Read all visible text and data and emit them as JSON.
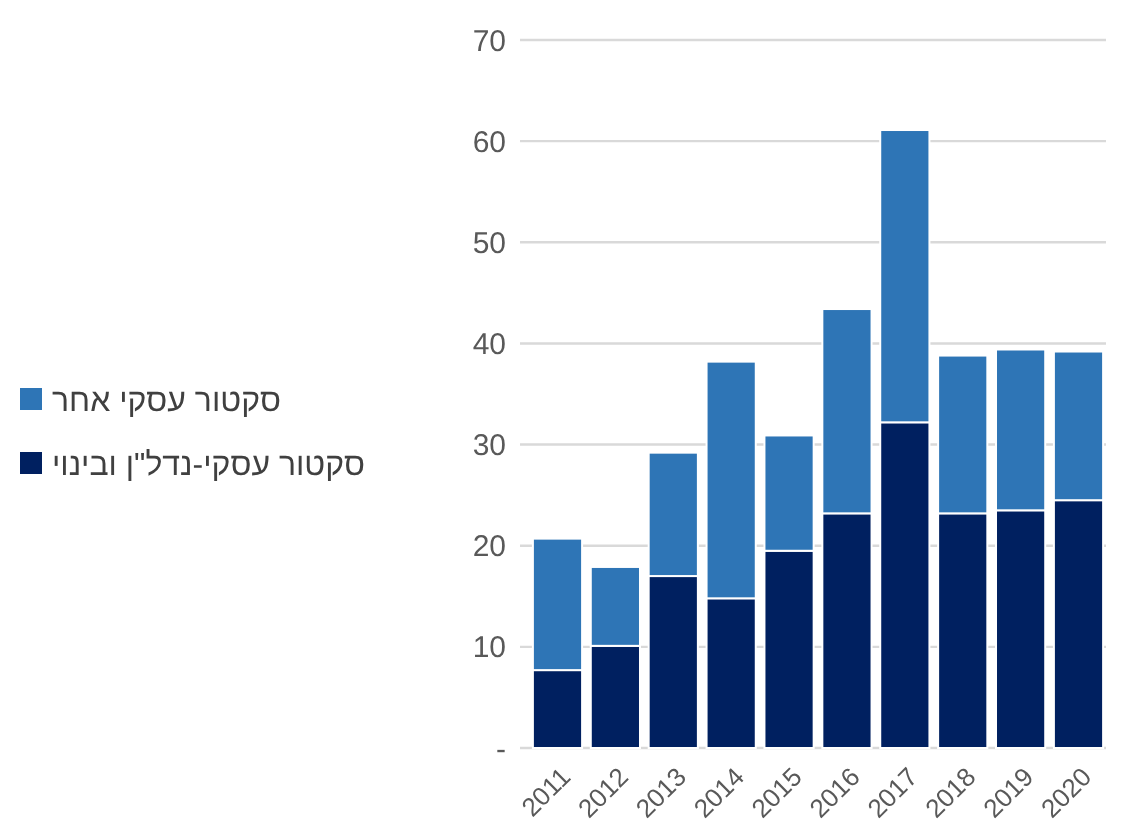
{
  "chart_data": {
    "type": "bar",
    "stacked": true,
    "categories": [
      "2011",
      "2012",
      "2013",
      "2014",
      "2015",
      "2016",
      "2017",
      "2018",
      "2019",
      "2020"
    ],
    "series": [
      {
        "name": "סקטור עסקי-נדל\"ן ובינוי",
        "color": "#002060",
        "values": [
          7.7,
          10.1,
          17.0,
          14.8,
          19.5,
          23.2,
          32.2,
          23.2,
          23.5,
          24.5
        ]
      },
      {
        "name": "סקטור עסקי אחר",
        "color": "#2e75b6",
        "values": [
          13.0,
          7.8,
          12.2,
          23.4,
          11.4,
          20.2,
          28.9,
          15.6,
          15.9,
          14.7
        ]
      }
    ],
    "ylim": [
      0,
      70
    ],
    "yticks": [
      {
        "value": 0,
        "label": "-"
      },
      10,
      20,
      30,
      40,
      50,
      60,
      70
    ],
    "grid": "y",
    "legend": "left"
  }
}
